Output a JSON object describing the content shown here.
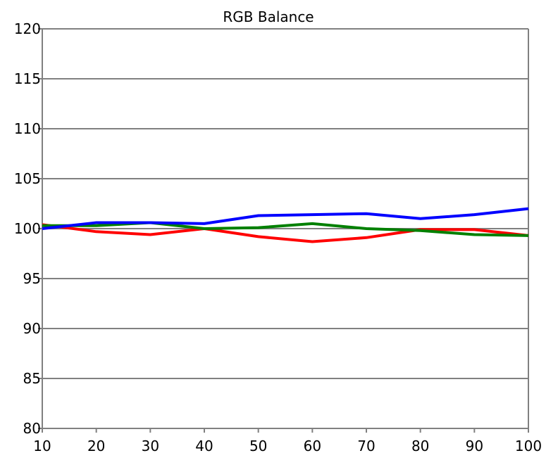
{
  "chart_data": {
    "type": "line",
    "title": "RGB Balance",
    "xlabel": "",
    "ylabel": "",
    "x": [
      10,
      20,
      30,
      40,
      50,
      60,
      70,
      80,
      90,
      100
    ],
    "xlim": [
      10,
      100
    ],
    "ylim": [
      80,
      120
    ],
    "xticks": [
      "10",
      "20",
      "30",
      "40",
      "50",
      "60",
      "70",
      "80",
      "90",
      "100"
    ],
    "yticks": [
      "80",
      "85",
      "90",
      "95",
      "100",
      "105",
      "110",
      "115",
      "120"
    ],
    "grid": "horizontal",
    "series": [
      {
        "color": "#ff0000",
        "values": [
          100.4,
          99.7,
          99.4,
          100.0,
          99.2,
          98.7,
          99.1,
          99.9,
          99.9,
          99.3
        ]
      },
      {
        "color": "#008000",
        "values": [
          100.3,
          100.3,
          100.6,
          100.0,
          100.1,
          100.5,
          100.0,
          99.8,
          99.4,
          99.3
        ]
      },
      {
        "color": "#0000ff",
        "values": [
          100.0,
          100.6,
          100.6,
          100.5,
          101.3,
          101.4,
          101.5,
          101.0,
          101.4,
          102.0
        ]
      }
    ]
  }
}
